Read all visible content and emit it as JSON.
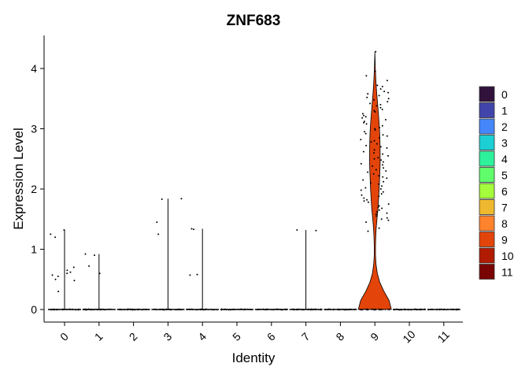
{
  "chart_data": {
    "type": "violin",
    "title": "ZNF683",
    "xlabel": "Identity",
    "ylabel": "Expression Level",
    "categories": [
      "0",
      "1",
      "2",
      "3",
      "4",
      "5",
      "6",
      "7",
      "8",
      "9",
      "10",
      "11"
    ],
    "ylim": [
      -0.15,
      4.5
    ],
    "yticks": [
      0,
      1,
      2,
      3,
      4
    ],
    "grid": false,
    "legend_position": "right",
    "colors": [
      "#30123B",
      "#4145AB",
      "#4686FB",
      "#1BCFD4",
      "#2EF19C",
      "#61FC6C",
      "#A4FC3C",
      "#EFB92F",
      "#FF822D",
      "#E3440A",
      "#B01B02",
      "#7A0403"
    ],
    "max_values": [
      1.32,
      0.92,
      0.0,
      1.84,
      1.34,
      0.0,
      0.0,
      1.32,
      0.0,
      4.28,
      0.0,
      0.0
    ],
    "violin_profiles": [
      {
        "cluster": "9",
        "y": [
          0,
          0.15,
          0.3,
          0.45,
          0.6,
          0.75,
          0.9,
          1.05,
          1.2,
          1.35,
          1.5,
          1.65,
          1.8,
          2.0,
          2.2,
          2.4,
          2.6,
          2.8,
          3.0,
          3.2,
          3.4,
          3.6,
          3.8,
          4.0,
          4.15,
          4.28
        ],
        "density": [
          1.0,
          0.86,
          0.55,
          0.3,
          0.15,
          0.07,
          0.04,
          0.04,
          0.05,
          0.08,
          0.13,
          0.18,
          0.22,
          0.26,
          0.29,
          0.32,
          0.32,
          0.31,
          0.28,
          0.23,
          0.17,
          0.11,
          0.06,
          0.03,
          0.015,
          0.0
        ]
      }
    ],
    "points": [
      {
        "cluster": "0",
        "values": [
          1.32,
          1.25,
          1.2,
          0.7,
          0.65,
          0.62,
          0.6,
          0.57,
          0.55,
          0.5,
          0.48,
          0.3
        ]
      },
      {
        "cluster": "1",
        "values": [
          0.92,
          0.9,
          0.72,
          0.6
        ]
      },
      {
        "cluster": "3",
        "values": [
          1.84,
          1.83,
          1.45,
          1.25
        ]
      },
      {
        "cluster": "4",
        "values": [
          1.34,
          1.33,
          0.58,
          0.57
        ]
      },
      {
        "cluster": "7",
        "values": [
          1.32,
          1.31
        ]
      },
      {
        "cluster": "9",
        "values": [
          4.28,
          3.95,
          3.88,
          3.8,
          3.72,
          3.7,
          3.66,
          3.62,
          3.6,
          3.58,
          3.55,
          3.52,
          3.5,
          3.48,
          3.45,
          3.42,
          3.4,
          3.38,
          3.35,
          3.32,
          3.3,
          3.28,
          3.25,
          3.22,
          3.2,
          3.18,
          3.15,
          3.12,
          3.1,
          3.08,
          3.05,
          3.02,
          3.0,
          2.98,
          2.95,
          2.92,
          2.9,
          2.88,
          2.85,
          2.82,
          2.8,
          2.78,
          2.75,
          2.72,
          2.7,
          2.68,
          2.65,
          2.62,
          2.6,
          2.58,
          2.55,
          2.52,
          2.5,
          2.48,
          2.45,
          2.42,
          2.4,
          2.38,
          2.35,
          2.32,
          2.3,
          2.28,
          2.25,
          2.22,
          2.2,
          2.18,
          2.15,
          2.12,
          2.1,
          2.08,
          2.05,
          2.02,
          2.0,
          1.98,
          1.95,
          1.92,
          1.9,
          1.88,
          1.85,
          1.82,
          1.8,
          1.78,
          1.75,
          1.72,
          1.7,
          1.68,
          1.65,
          1.62,
          1.6,
          1.58,
          1.55,
          1.52,
          1.5,
          1.48,
          1.45,
          1.35,
          1.3
        ]
      }
    ]
  }
}
